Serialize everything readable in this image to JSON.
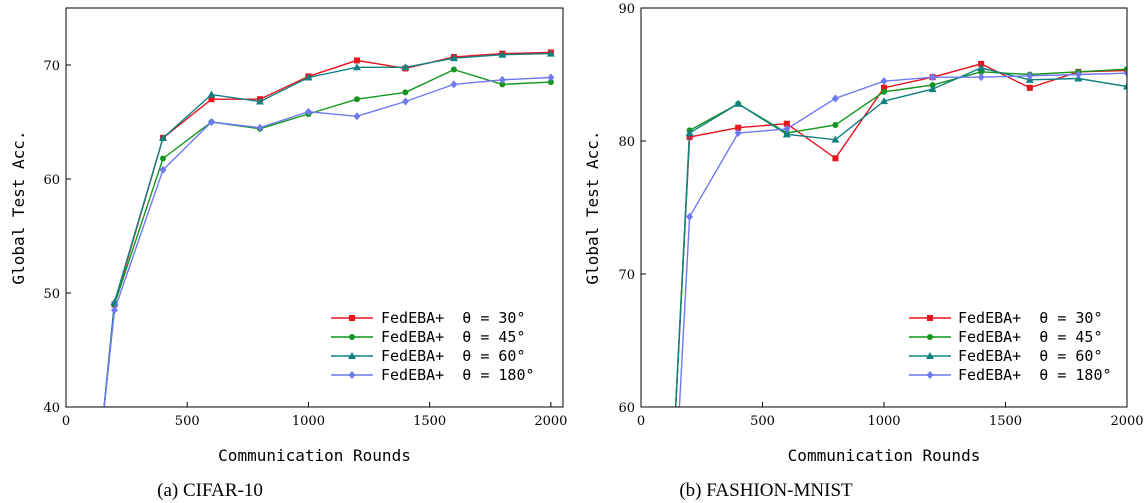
{
  "chart_data": [
    {
      "type": "line",
      "caption": "(a) CIFAR-10",
      "xlabel": "Communication Rounds",
      "ylabel": "Global Test Acc.",
      "xlim": [
        0,
        2050
      ],
      "ylim": [
        40,
        75
      ],
      "xticks": [
        0,
        500,
        1000,
        1500,
        2000
      ],
      "yticks": [
        40,
        50,
        60,
        70
      ],
      "legend": "bottom-right",
      "grid": false,
      "series": [
        {
          "name": "FedEBA+  θ = 30°",
          "color": "#e8141e",
          "marker": "square",
          "x": [
            150,
            200,
            400,
            600,
            800,
            1000,
            1200,
            1400,
            1600,
            1800,
            2000
          ],
          "y": [
            38.5,
            49.0,
            63.6,
            67.0,
            67.0,
            69.0,
            70.4,
            69.7,
            70.7,
            71.0,
            71.1
          ]
        },
        {
          "name": "FedEBA+  θ = 45°",
          "color": "#14961e",
          "marker": "circle",
          "x": [
            150,
            200,
            400,
            600,
            800,
            1000,
            1200,
            1400,
            1600,
            1800,
            2000
          ],
          "y": [
            38.5,
            49.0,
            61.8,
            65.0,
            64.4,
            65.7,
            67.0,
            67.6,
            69.6,
            68.3,
            68.5
          ]
        },
        {
          "name": "FedEBA+  θ = 60°",
          "color": "#108080",
          "marker": "triangle",
          "x": [
            150,
            200,
            400,
            600,
            800,
            1000,
            1200,
            1400,
            1600,
            1800,
            2000
          ],
          "y": [
            38.5,
            49.2,
            63.6,
            67.4,
            66.8,
            68.9,
            69.8,
            69.8,
            70.6,
            70.9,
            71.0
          ]
        },
        {
          "name": "FedEBA+  θ = 180°",
          "color": "#6e7af0",
          "marker": "diamond",
          "x": [
            150,
            200,
            400,
            600,
            800,
            1000,
            1200,
            1400,
            1600,
            1800,
            2000
          ],
          "y": [
            38.5,
            48.5,
            60.8,
            65.0,
            64.5,
            65.9,
            65.5,
            66.8,
            68.3,
            68.7,
            68.9
          ]
        }
      ]
    },
    {
      "type": "line",
      "caption": "(b) FASHION-MNIST",
      "xlabel": "Communication Rounds",
      "ylabel": "Global Test Acc.",
      "xlim": [
        0,
        2000
      ],
      "ylim": [
        60,
        90
      ],
      "xticks": [
        0,
        500,
        1000,
        1500,
        2000
      ],
      "yticks": [
        60,
        70,
        80,
        90
      ],
      "legend": "bottom-right",
      "grid": false,
      "series": [
        {
          "name": "FedEBA+  θ = 30°",
          "color": "#e8141e",
          "marker": "square",
          "x": [
            140,
            200,
            400,
            600,
            800,
            1000,
            1200,
            1400,
            1600,
            1800,
            2000
          ],
          "y": [
            59.0,
            80.3,
            81.0,
            81.3,
            78.7,
            84.0,
            84.8,
            85.8,
            84.0,
            85.2,
            85.3
          ]
        },
        {
          "name": "FedEBA+  θ = 45°",
          "color": "#14961e",
          "marker": "circle",
          "x": [
            140,
            200,
            400,
            600,
            800,
            1000,
            1200,
            1400,
            1600,
            1800,
            2000
          ],
          "y": [
            59.0,
            80.8,
            82.8,
            80.6,
            81.2,
            83.7,
            84.2,
            85.2,
            85.0,
            85.2,
            85.4
          ]
        },
        {
          "name": "FedEBA+  θ = 60°",
          "color": "#108080",
          "marker": "triangle",
          "x": [
            140,
            200,
            400,
            600,
            800,
            1000,
            1200,
            1400,
            1600,
            1800,
            2000
          ],
          "y": [
            59.0,
            80.6,
            82.8,
            80.5,
            80.1,
            83.0,
            83.9,
            85.5,
            84.6,
            84.7,
            84.1
          ]
        },
        {
          "name": "FedEBA+  θ = 180°",
          "color": "#6e7af0",
          "marker": "diamond",
          "x": [
            155,
            200,
            400,
            600,
            800,
            1000,
            1200,
            1400,
            1600,
            1800,
            2000
          ],
          "y": [
            59.0,
            74.3,
            80.6,
            80.9,
            83.2,
            84.5,
            84.8,
            84.8,
            84.9,
            85.0,
            85.1
          ]
        }
      ]
    }
  ]
}
